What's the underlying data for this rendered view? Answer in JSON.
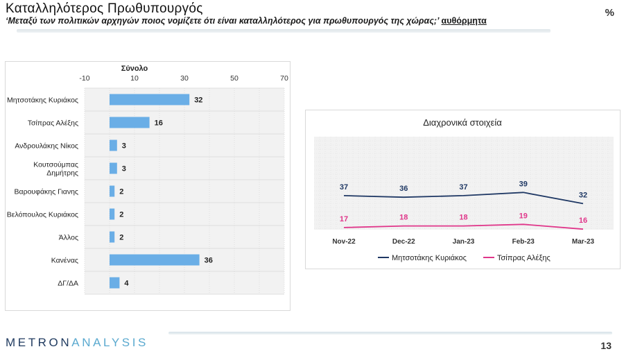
{
  "header": {
    "title": "Καταλληλότερος Πρωθυπουργός",
    "subtitle": "‘Μεταξύ των πολιτικών αρχηγών ποιος νομίζετε ότι είναι καταλληλότερος για πρωθυπουργός της χώρας;’",
    "subtitle_tag": "αυθόρμητα",
    "unit": "%"
  },
  "footer": {
    "logo_part1": "METRON",
    "logo_part2": "ANALYSIS",
    "page_number": "13"
  },
  "chart_data": [
    {
      "type": "bar",
      "orientation": "horizontal",
      "series_name": "Σύνολο",
      "categories": [
        [
          "Μητσοτάκης Κυριάκος"
        ],
        [
          "Τσίπρας Αλέξης"
        ],
        [
          "Ανδρουλάκης Νίκος"
        ],
        [
          "Κουτσούμπας",
          "Δημήτρης"
        ],
        [
          "Βαρουφάκης Γιανης"
        ],
        [
          "Βελόπουλος Κυριάκος"
        ],
        [
          "Άλλος"
        ],
        [
          "Κανένας"
        ],
        [
          "ΔΓ/ΔΑ"
        ]
      ],
      "values": [
        32,
        16,
        3,
        3,
        2,
        2,
        2,
        36,
        4
      ],
      "xlim": [
        -10,
        70
      ],
      "xticks": [
        -10,
        10,
        30,
        50,
        70
      ],
      "grid": true,
      "bar_color": "#6aaee6"
    },
    {
      "type": "line",
      "title": "Διαχρονικά στοιχεία",
      "x": [
        "Nov-22",
        "Dec-22",
        "Jan-23",
        "Feb-23",
        "Mar-23"
      ],
      "series": [
        {
          "name": "Μητσοτάκης Κυριάκος",
          "values": [
            37,
            36,
            37,
            39,
            32
          ],
          "color": "#1f3864"
        },
        {
          "name": "Τσίπρας Αλέξης",
          "values": [
            17,
            18,
            18,
            19,
            16
          ],
          "color": "#e0368a"
        }
      ],
      "legend": "bottom",
      "grid": true
    }
  ]
}
